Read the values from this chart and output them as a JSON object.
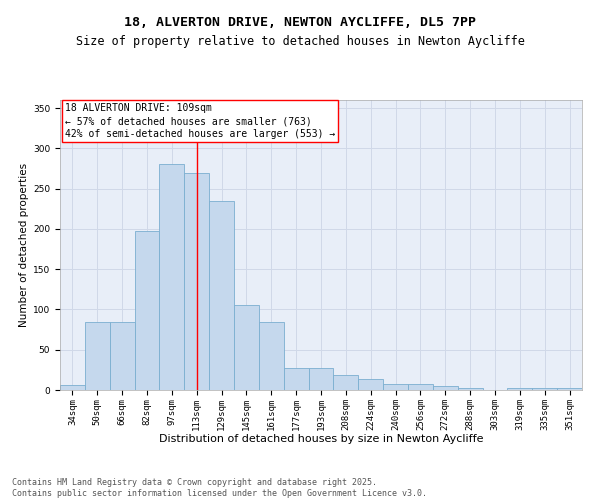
{
  "title": "18, ALVERTON DRIVE, NEWTON AYCLIFFE, DL5 7PP",
  "subtitle": "Size of property relative to detached houses in Newton Aycliffe",
  "xlabel": "Distribution of detached houses by size in Newton Aycliffe",
  "ylabel": "Number of detached properties",
  "categories": [
    "34sqm",
    "50sqm",
    "66sqm",
    "82sqm",
    "97sqm",
    "113sqm",
    "129sqm",
    "145sqm",
    "161sqm",
    "177sqm",
    "193sqm",
    "208sqm",
    "224sqm",
    "240sqm",
    "256sqm",
    "272sqm",
    "288sqm",
    "303sqm",
    "319sqm",
    "335sqm",
    "351sqm"
  ],
  "values": [
    6,
    84,
    84,
    197,
    280,
    270,
    235,
    105,
    84,
    27,
    27,
    19,
    14,
    8,
    8,
    5,
    2,
    0,
    3,
    2,
    2
  ],
  "bar_color": "#c5d8ed",
  "bar_edge_color": "#7aaed0",
  "bar_linewidth": 0.6,
  "vline_color": "red",
  "vline_linewidth": 1.0,
  "annotation_text": "18 ALVERTON DRIVE: 109sqm\n← 57% of detached houses are smaller (763)\n42% of semi-detached houses are larger (553) →",
  "annotation_box_color": "white",
  "annotation_box_edgecolor": "red",
  "annotation_fontsize": 7.0,
  "grid_color": "#d0d8e8",
  "background_color": "#e8eef8",
  "ylim": [
    0,
    360
  ],
  "yticks": [
    0,
    50,
    100,
    150,
    200,
    250,
    300,
    350
  ],
  "title_fontsize": 9.5,
  "subtitle_fontsize": 8.5,
  "xlabel_fontsize": 8.0,
  "ylabel_fontsize": 7.5,
  "tick_fontsize": 6.5,
  "footer_text": "Contains HM Land Registry data © Crown copyright and database right 2025.\nContains public sector information licensed under the Open Government Licence v3.0.",
  "footer_fontsize": 6.0
}
